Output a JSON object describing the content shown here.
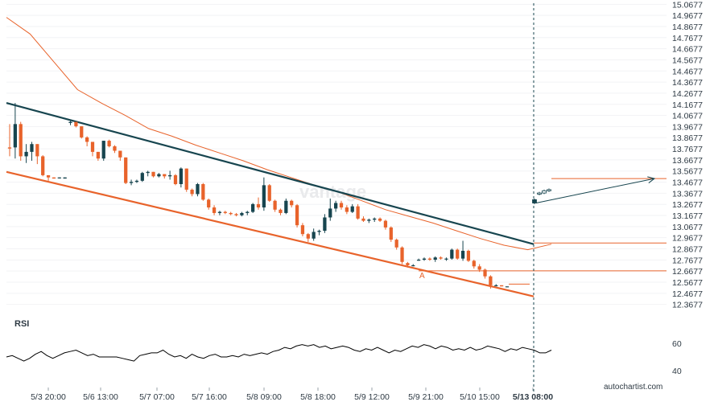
{
  "chart_data": {
    "type": "candlestick",
    "ylim": [
      12.3,
      15.07
    ],
    "y_ticks": [
      "15.0677",
      "14.9677",
      "14.8677",
      "14.7677",
      "14.6677",
      "14.5677",
      "14.4677",
      "14.3677",
      "14.2677",
      "14.1677",
      "14.0677",
      "13.9677",
      "13.8677",
      "13.7677",
      "13.6677",
      "13.5677",
      "13.4677",
      "13.3677",
      "13.2677",
      "13.1677",
      "13.0677",
      "12.9677",
      "12.8677",
      "12.7677",
      "12.6677",
      "12.5677",
      "12.4677",
      "12.3677"
    ],
    "x_ticks": [
      "5/3 20:00",
      "5/6 13:00",
      "5/7 07:00",
      "5/7 16:00",
      "5/8 09:00",
      "5/8 18:00",
      "5/9 12:00",
      "5/9 21:00",
      "5/10 15:00",
      "5/13 08:00"
    ],
    "candles": [
      [
        13.78,
        13.99,
        13.7,
        13.77
      ],
      [
        13.78,
        14.18,
        13.68,
        13.99
      ],
      [
        13.99,
        14.01,
        13.66,
        13.7
      ],
      [
        13.7,
        13.81,
        13.64,
        13.74
      ],
      [
        13.74,
        13.83,
        13.66,
        13.81
      ],
      [
        13.81,
        13.81,
        13.63,
        13.7
      ],
      [
        13.7,
        13.71,
        13.52,
        13.53
      ],
      [
        13.53,
        13.53,
        13.48,
        13.51
      ],
      [
        13.51,
        13.51,
        13.5,
        13.5
      ],
      [
        13.51,
        13.51,
        13.5,
        13.51
      ],
      [
        13.5,
        13.51,
        13.5,
        13.51
      ],
      [
        14.0,
        14.02,
        13.98,
        14.01
      ],
      [
        14.01,
        14.01,
        13.96,
        13.97
      ],
      [
        13.97,
        13.97,
        13.86,
        13.87
      ],
      [
        13.87,
        13.88,
        13.79,
        13.83
      ],
      [
        13.83,
        13.83,
        13.7,
        13.74
      ],
      [
        13.74,
        13.74,
        13.66,
        13.68
      ],
      [
        13.68,
        13.84,
        13.66,
        13.84
      ],
      [
        13.84,
        13.85,
        13.78,
        13.79
      ],
      [
        13.79,
        13.8,
        13.73,
        13.75
      ],
      [
        13.75,
        13.75,
        13.66,
        13.69
      ],
      [
        13.69,
        13.69,
        13.45,
        13.46
      ],
      [
        13.46,
        13.49,
        13.44,
        13.47
      ],
      [
        13.47,
        13.49,
        13.46,
        13.48
      ],
      [
        13.48,
        13.56,
        13.47,
        13.55
      ],
      [
        13.55,
        13.57,
        13.52,
        13.56
      ],
      [
        13.56,
        13.56,
        13.51,
        13.52
      ],
      [
        13.52,
        13.55,
        13.51,
        13.54
      ],
      [
        13.54,
        13.54,
        13.5,
        13.52
      ],
      [
        13.52,
        13.57,
        13.49,
        13.53
      ],
      [
        13.53,
        13.54,
        13.44,
        13.45
      ],
      [
        13.45,
        13.6,
        13.42,
        13.59
      ],
      [
        13.59,
        13.59,
        13.38,
        13.4
      ],
      [
        13.4,
        13.41,
        13.34,
        13.36
      ],
      [
        13.36,
        13.46,
        13.34,
        13.45
      ],
      [
        13.45,
        13.46,
        13.3,
        13.31
      ],
      [
        13.31,
        13.32,
        13.22,
        13.24
      ],
      [
        13.24,
        13.26,
        13.17,
        13.19
      ],
      [
        13.19,
        13.21,
        13.17,
        13.2
      ],
      [
        13.2,
        13.21,
        13.18,
        13.19
      ],
      [
        13.19,
        13.2,
        13.17,
        13.18
      ],
      [
        13.18,
        13.19,
        13.16,
        13.17
      ],
      [
        13.17,
        13.2,
        13.16,
        13.19
      ],
      [
        13.19,
        13.21,
        13.17,
        13.2
      ],
      [
        13.2,
        13.28,
        13.19,
        13.27
      ],
      [
        13.27,
        13.33,
        13.22,
        13.24
      ],
      [
        13.24,
        13.51,
        13.21,
        13.44
      ],
      [
        13.44,
        13.45,
        13.29,
        13.3
      ],
      [
        13.3,
        13.31,
        13.2,
        13.22
      ],
      [
        13.22,
        13.23,
        13.17,
        13.19
      ],
      [
        13.19,
        13.32,
        13.18,
        13.3
      ],
      [
        13.3,
        13.31,
        13.24,
        13.26
      ],
      [
        13.26,
        13.27,
        13.06,
        13.08
      ],
      [
        13.08,
        13.1,
        12.98,
        13.0
      ],
      [
        13.0,
        13.01,
        12.93,
        12.96
      ],
      [
        12.96,
        13.05,
        12.94,
        13.02
      ],
      [
        13.02,
        13.04,
        12.99,
        13.03
      ],
      [
        13.03,
        13.18,
        13.01,
        13.15
      ],
      [
        13.15,
        13.32,
        13.12,
        13.23
      ],
      [
        13.23,
        13.3,
        13.2,
        13.28
      ],
      [
        13.28,
        13.3,
        13.22,
        13.24
      ],
      [
        13.24,
        13.26,
        13.18,
        13.2
      ],
      [
        13.2,
        13.27,
        13.19,
        13.25
      ],
      [
        13.25,
        13.27,
        13.13,
        13.14
      ],
      [
        13.14,
        13.16,
        13.11,
        13.12
      ],
      [
        13.12,
        13.14,
        13.1,
        13.13
      ],
      [
        13.13,
        13.15,
        13.11,
        13.14
      ],
      [
        13.14,
        13.15,
        13.11,
        13.12
      ],
      [
        13.12,
        13.13,
        13.04,
        13.06
      ],
      [
        13.06,
        13.07,
        12.93,
        12.95
      ],
      [
        12.95,
        12.96,
        12.86,
        12.88
      ],
      [
        12.88,
        12.89,
        12.73,
        12.75
      ],
      [
        12.74,
        12.75,
        12.7,
        12.72
      ],
      [
        12.72,
        12.73,
        12.71,
        12.72
      ],
      [
        12.77,
        12.78,
        12.76,
        12.77
      ],
      [
        12.77,
        12.79,
        12.76,
        12.78
      ],
      [
        12.78,
        12.79,
        12.76,
        12.77
      ],
      [
        12.77,
        12.8,
        12.75,
        12.79
      ],
      [
        12.79,
        12.8,
        12.77,
        12.78
      ],
      [
        12.78,
        12.79,
        12.76,
        12.78
      ],
      [
        12.78,
        12.87,
        12.77,
        12.86
      ],
      [
        12.86,
        12.87,
        12.77,
        12.78
      ],
      [
        12.78,
        12.94,
        12.76,
        12.85
      ],
      [
        12.85,
        12.86,
        12.75,
        12.76
      ],
      [
        12.76,
        12.77,
        12.69,
        12.71
      ],
      [
        12.71,
        12.73,
        12.66,
        12.68
      ],
      [
        12.68,
        12.69,
        12.6,
        12.62
      ],
      [
        12.62,
        12.63,
        12.51,
        12.54
      ],
      [
        12.54,
        12.55,
        12.53,
        12.54
      ],
      [
        12.54,
        12.54,
        12.53,
        12.53
      ],
      [
        12.53,
        12.53,
        12.53,
        12.53
      ]
    ],
    "forecast_candles": [
      [
        13.28,
        13.32,
        13.27,
        13.31
      ],
      [
        13.36,
        13.38,
        13.35,
        13.37
      ],
      [
        13.37,
        13.4,
        13.36,
        13.39
      ],
      [
        13.39,
        13.41,
        13.38,
        13.4
      ]
    ],
    "moving_average": [
      14.95,
      14.8,
      14.55,
      14.3,
      14.18,
      14.07,
      13.95,
      13.88,
      13.8,
      13.73,
      13.66,
      13.58,
      13.51,
      13.44,
      13.38,
      13.3,
      13.22,
      13.16,
      13.1,
      13.03,
      12.96,
      12.9,
      12.86,
      12.91
    ],
    "resistance_line": {
      "start": 14.18,
      "end": 12.91
    },
    "support_line": {
      "start": 13.56,
      "end": 12.44
    },
    "point_label": "A",
    "levels": [
      13.5,
      12.92,
      12.67,
      12.55
    ],
    "forecast_arrow": {
      "start": 13.28,
      "end": 13.5
    },
    "rsi": {
      "label": "RSI",
      "ticks": [
        "60",
        "40"
      ],
      "ylim": [
        30,
        70
      ],
      "values": [
        50,
        51,
        49,
        47,
        49,
        52,
        54,
        51,
        49,
        51,
        53,
        54,
        55,
        53,
        51,
        52,
        50,
        50,
        50,
        50,
        49,
        48,
        47,
        51,
        52,
        53,
        53,
        55,
        52,
        50,
        51,
        49,
        52,
        50,
        49,
        51,
        52,
        50,
        50,
        51,
        50,
        52,
        51,
        52,
        53,
        52,
        54,
        55,
        57,
        56,
        58,
        59,
        58,
        59,
        57,
        58,
        56,
        57,
        58,
        57,
        55,
        54,
        56,
        55,
        57,
        55,
        53,
        55,
        54,
        56,
        58,
        57,
        59,
        58,
        56,
        58,
        57,
        55,
        56,
        55,
        57,
        55,
        56,
        58,
        57,
        56,
        54,
        56,
        55,
        57,
        56,
        55,
        53,
        53,
        55
      ]
    }
  },
  "watermark": "vantage",
  "brand": "autochartist.com",
  "colors": {
    "up": "#17454f",
    "down": "#e8632b",
    "resistance": "#17454f",
    "support": "#e8632b",
    "ma": "#e8632b",
    "rsi": "#000000",
    "arrow": "#17454f",
    "cursor": "#17454f"
  }
}
